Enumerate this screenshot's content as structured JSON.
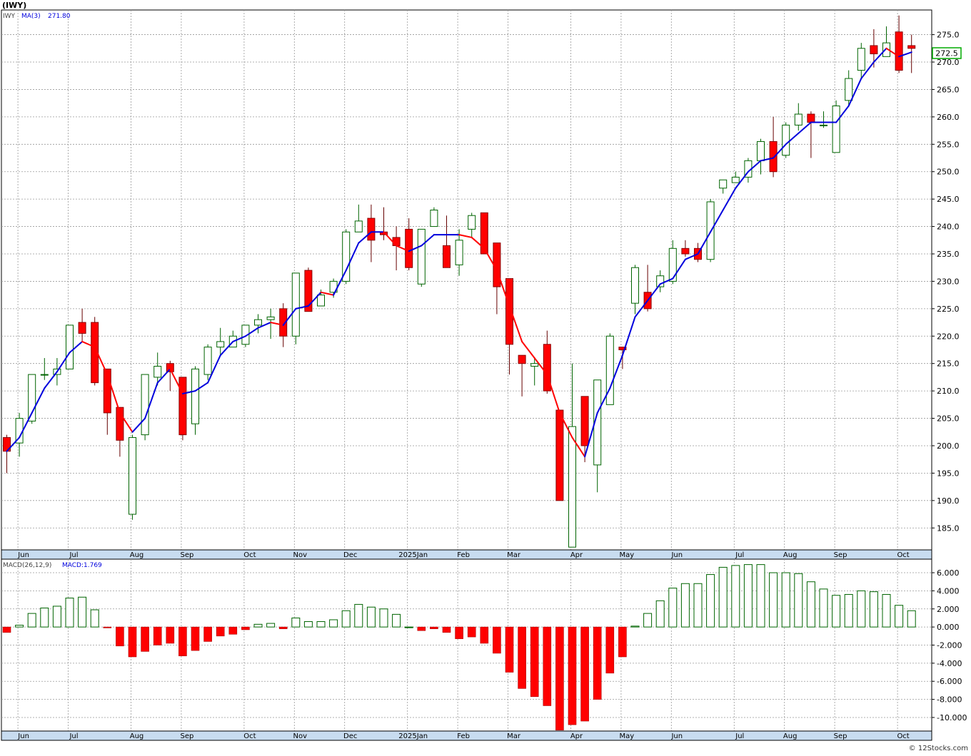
{
  "header": {
    "title": "(IWY)"
  },
  "watermark": "© 12Stocks.com",
  "colors": {
    "up": "#006400",
    "down": "#ff0000",
    "ma_up": "#0000dd",
    "ma_down": "#ff0000",
    "axis_band": "#c8dcf0",
    "grid": "#999999",
    "price_box": "#00aa00"
  },
  "chart_data": [
    {
      "type": "candlestick",
      "legend": {
        "symbol": "IWY",
        "ma_label": "MA(3)",
        "ma_value": "271.80"
      },
      "last_price_label": "272.5",
      "last_price": 272.5,
      "ylim": [
        181,
        279.5
      ],
      "y_ticks": [
        185,
        190,
        195,
        200,
        205,
        210,
        215,
        220,
        225,
        230,
        235,
        240,
        245,
        250,
        255,
        260,
        265,
        270,
        275
      ],
      "y_tick_labels": [
        "185.0",
        "190.0",
        "195.0",
        "200.0",
        "205.0",
        "210.0",
        "215.0",
        "220.0",
        "225.0",
        "230.0",
        "235.0",
        "240.0",
        "245.0",
        "250.0",
        "255.0",
        "260.0",
        "265.0",
        "270.0",
        "275.0"
      ],
      "x_labels": [
        {
          "label": "Jun",
          "week": 1
        },
        {
          "label": "Jul",
          "week": 5
        },
        {
          "label": "Aug",
          "week": 10
        },
        {
          "label": "Sep",
          "week": 14
        },
        {
          "label": "Oct",
          "week": 19
        },
        {
          "label": "Nov",
          "week": 23
        },
        {
          "label": "Dec",
          "week": 27
        },
        {
          "label": "2025Jan",
          "week": 32
        },
        {
          "label": "Feb",
          "week": 36
        },
        {
          "label": "Mar",
          "week": 40
        },
        {
          "label": "Apr",
          "week": 45
        },
        {
          "label": "May",
          "week": 49
        },
        {
          "label": "Jun",
          "week": 53
        },
        {
          "label": "Jul",
          "week": 58
        },
        {
          "label": "Aug",
          "week": 62
        },
        {
          "label": "Sep",
          "week": 66
        },
        {
          "label": "Oct",
          "week": 71
        }
      ],
      "candles": [
        [
          201.5,
          195,
          202,
          199
        ],
        [
          200.5,
          198,
          206,
          205
        ],
        [
          204.5,
          204,
          213,
          213
        ],
        [
          213,
          212,
          216,
          213
        ],
        [
          213,
          211,
          216,
          214
        ],
        [
          214,
          214,
          222,
          222
        ],
        [
          222.5,
          219,
          225,
          220.5
        ],
        [
          222.5,
          211,
          223.5,
          211.5
        ],
        [
          214,
          202,
          214,
          206
        ],
        [
          207,
          198,
          207,
          201
        ],
        [
          187.5,
          186.5,
          202,
          201.5
        ],
        [
          202,
          201,
          213,
          213
        ],
        [
          212.5,
          211,
          217,
          214.5
        ],
        [
          215,
          210,
          215.5,
          213.5
        ],
        [
          212.5,
          201,
          212.5,
          202
        ],
        [
          204,
          202,
          214.5,
          214
        ],
        [
          213,
          212,
          218.5,
          218
        ],
        [
          218,
          216.5,
          221.5,
          219
        ],
        [
          218,
          218,
          221,
          220
        ],
        [
          218.5,
          218,
          222,
          222
        ],
        [
          222,
          220.5,
          224,
          223
        ],
        [
          223,
          219.5,
          225,
          223.5
        ],
        [
          225,
          218,
          226,
          220
        ],
        [
          220,
          218.5,
          231.5,
          231.5
        ],
        [
          232,
          224.5,
          232.5,
          224.5
        ],
        [
          225.5,
          225.5,
          228.5,
          227.5
        ],
        [
          228,
          227,
          230.5,
          230
        ],
        [
          230,
          229.5,
          239.5,
          239
        ],
        [
          239,
          239,
          244,
          241
        ],
        [
          241.5,
          233.5,
          244,
          237.5
        ],
        [
          239,
          237.5,
          243.5,
          238.5
        ],
        [
          238,
          232,
          240,
          236.5
        ],
        [
          239.5,
          232,
          241.5,
          232.5
        ],
        [
          229.5,
          229,
          239,
          239.5
        ],
        [
          240,
          240,
          243.5,
          243
        ],
        [
          236.5,
          232.5,
          242,
          232.5
        ],
        [
          233,
          231,
          239.5,
          237.5
        ],
        [
          239.5,
          238,
          242.5,
          242
        ],
        [
          242.5,
          235.5,
          242.5,
          235
        ],
        [
          237,
          224,
          237,
          229
        ],
        [
          230.5,
          213,
          230.5,
          218.5
        ],
        [
          216.5,
          209,
          216.5,
          215
        ],
        [
          214.5,
          211,
          216,
          215
        ],
        [
          218.5,
          209.5,
          221,
          210
        ],
        [
          206.5,
          190,
          206.5,
          190
        ],
        [
          181.5,
          181.5,
          215,
          203.5
        ],
        [
          209,
          197,
          209,
          200
        ],
        [
          196.5,
          191.5,
          212,
          212
        ],
        [
          207.5,
          207.5,
          220.5,
          220
        ],
        [
          218,
          214,
          218,
          217.5
        ],
        [
          226,
          224,
          233,
          232.5
        ],
        [
          228,
          224.5,
          233,
          225
        ],
        [
          229,
          228,
          232,
          231
        ],
        [
          230,
          229.5,
          237.5,
          236
        ],
        [
          236,
          234.5,
          237.5,
          235
        ],
        [
          236,
          233.5,
          237,
          234
        ],
        [
          234,
          233.5,
          245,
          244.5
        ],
        [
          247,
          246,
          248,
          248.5
        ],
        [
          248,
          248,
          250,
          249
        ],
        [
          249,
          248,
          252.5,
          252
        ],
        [
          252,
          249.5,
          256,
          255.5
        ],
        [
          255.5,
          249,
          260,
          250
        ],
        [
          253,
          252.5,
          259,
          258.5
        ],
        [
          258.5,
          257.5,
          262.5,
          260.5
        ],
        [
          260.5,
          252.5,
          261,
          259
        ],
        [
          258.5,
          258,
          261,
          258.5
        ],
        [
          253.5,
          253.5,
          263,
          262
        ],
        [
          263,
          262,
          268.5,
          267
        ],
        [
          268.5,
          267,
          273.5,
          272.5
        ],
        [
          273,
          269,
          276,
          271.5
        ],
        [
          271,
          271,
          276.5,
          273.5
        ],
        [
          275.5,
          268,
          278.5,
          268.5
        ],
        [
          273,
          268,
          275,
          272.5
        ]
      ],
      "ma3": [
        199,
        201.5,
        206,
        210.5,
        213.5,
        217,
        219,
        218,
        213,
        206,
        202.5,
        205,
        211.5,
        214,
        209.5,
        210,
        211.5,
        216.5,
        219,
        220,
        221.5,
        222.5,
        222,
        225,
        225.5,
        228,
        227.5,
        232,
        237,
        239,
        239,
        236.5,
        235.5,
        236.5,
        238.5,
        238.5,
        238.5,
        238,
        236,
        232,
        225.5,
        219,
        216,
        213,
        206,
        201.5,
        198,
        206,
        210.5,
        216.5,
        223.5,
        226.5,
        229.5,
        230.5,
        234,
        235,
        239,
        243,
        247,
        250,
        252,
        252.5,
        255,
        257,
        259,
        259,
        259,
        262,
        267,
        270,
        272.5,
        271,
        271.8
      ]
    },
    {
      "type": "bar",
      "legend": {
        "label": "MACD(26,12,9)",
        "value_label": "MACD:1.769"
      },
      "ylim": [
        -11.5,
        7.5
      ],
      "y_ticks": [
        6,
        4,
        2,
        0,
        -2,
        -4,
        -6,
        -8,
        -10
      ],
      "y_tick_labels": [
        "6.000",
        "4.000",
        "2.000",
        "0.000",
        "-2.000",
        "-4.000",
        "-6.000",
        "-8.000",
        "-10.000"
      ],
      "values": [
        -0.6,
        0.2,
        1.5,
        2.1,
        2.3,
        3.2,
        3.3,
        1.9,
        -0.1,
        -2.1,
        -3.3,
        -2.7,
        -2.0,
        -1.8,
        -3.2,
        -2.6,
        -1.6,
        -1.0,
        -0.8,
        -0.3,
        0.3,
        0.4,
        -0.2,
        1.0,
        0.6,
        0.6,
        0.8,
        1.8,
        2.5,
        2.2,
        2.0,
        1.4,
        0.0,
        -0.4,
        -0.2,
        -0.6,
        -1.3,
        -1.1,
        -1.8,
        -2.9,
        -5.0,
        -6.8,
        -7.7,
        -8.7,
        -11.4,
        -10.8,
        -10.4,
        -8.0,
        -5.1,
        -3.3,
        0.1,
        1.5,
        2.9,
        4.3,
        4.8,
        4.8,
        5.8,
        6.6,
        6.8,
        6.9,
        6.9,
        6.0,
        6.0,
        5.9,
        5.0,
        4.2,
        3.5,
        3.6,
        4.0,
        3.9,
        3.6,
        2.4,
        1.8
      ]
    }
  ]
}
